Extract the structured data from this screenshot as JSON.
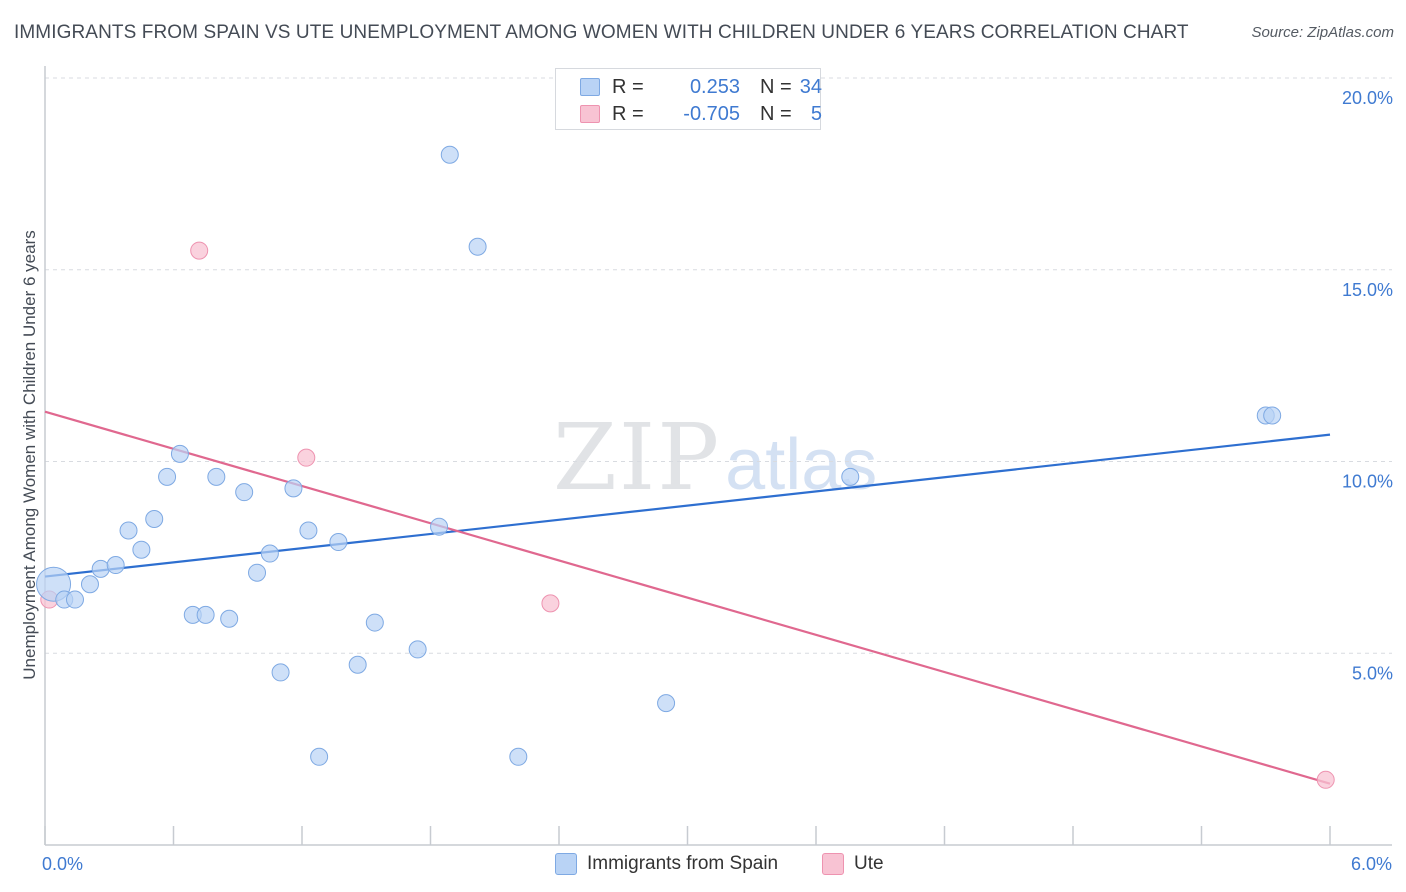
{
  "title": "IMMIGRANTS FROM SPAIN VS UTE UNEMPLOYMENT AMONG WOMEN WITH CHILDREN UNDER 6 YEARS CORRELATION CHART",
  "source": "Source: ZipAtlas.com",
  "watermark": {
    "zip": "ZIP",
    "atlas": "atlas"
  },
  "legend": {
    "rows": [
      {
        "r_label": "R =",
        "r_value": "0.253",
        "n_label": "N =",
        "n_value": "34"
      },
      {
        "r_label": "R =",
        "r_value": "-0.705",
        "n_label": "N =",
        "n_value": "5"
      }
    ]
  },
  "colors": {
    "spain_fill": "#b9d3f5",
    "spain_stroke": "#7ea9e3",
    "spain_line": "#2e6fd0",
    "ute_fill": "#f8c3d3",
    "ute_stroke": "#ee93b0",
    "ute_line": "#e0688f",
    "grid": "#d8dbe0",
    "axis": "#c7cbd1",
    "tick_text": "#3f7ad1"
  },
  "chart_data": {
    "type": "scatter",
    "title": "IMMIGRANTS FROM SPAIN VS UTE UNEMPLOYMENT AMONG WOMEN WITH CHILDREN UNDER 6 YEARS CORRELATION CHART",
    "xlabel": "",
    "ylabel": "Unemployment Among Women with Children Under 6 years",
    "xlim": [
      0,
      6
    ],
    "ylim": [
      0,
      20
    ],
    "x_tick_labels": [
      "0.0%",
      "6.0%"
    ],
    "y_ticks": [
      5,
      10,
      15,
      20
    ],
    "y_tick_labels": [
      "5.0%",
      "10.0%",
      "15.0%",
      "20.0%"
    ],
    "grid": true,
    "legend_position": "top-center",
    "series": [
      {
        "name": "Immigrants from Spain",
        "color": "#b9d3f5",
        "r": 0.253,
        "n": 34,
        "points": [
          {
            "x": 0.04,
            "y": 6.8,
            "big": true
          },
          {
            "x": 0.09,
            "y": 6.4
          },
          {
            "x": 0.14,
            "y": 6.4
          },
          {
            "x": 0.21,
            "y": 6.8
          },
          {
            "x": 0.26,
            "y": 7.2
          },
          {
            "x": 0.33,
            "y": 7.3
          },
          {
            "x": 0.39,
            "y": 8.2
          },
          {
            "x": 0.45,
            "y": 7.7
          },
          {
            "x": 0.51,
            "y": 8.5
          },
          {
            "x": 0.57,
            "y": 9.6
          },
          {
            "x": 0.63,
            "y": 10.2
          },
          {
            "x": 0.69,
            "y": 6.0
          },
          {
            "x": 0.75,
            "y": 6.0
          },
          {
            "x": 0.8,
            "y": 9.6
          },
          {
            "x": 0.86,
            "y": 5.9
          },
          {
            "x": 0.93,
            "y": 9.2
          },
          {
            "x": 0.99,
            "y": 7.1
          },
          {
            "x": 1.05,
            "y": 7.6
          },
          {
            "x": 1.1,
            "y": 4.5
          },
          {
            "x": 1.16,
            "y": 9.3
          },
          {
            "x": 1.23,
            "y": 8.2
          },
          {
            "x": 1.28,
            "y": 2.3
          },
          {
            "x": 1.37,
            "y": 7.9
          },
          {
            "x": 1.46,
            "y": 4.7
          },
          {
            "x": 1.54,
            "y": 5.8
          },
          {
            "x": 1.74,
            "y": 5.1
          },
          {
            "x": 1.84,
            "y": 8.3
          },
          {
            "x": 1.89,
            "y": 18.0
          },
          {
            "x": 2.02,
            "y": 15.6
          },
          {
            "x": 2.21,
            "y": 2.3
          },
          {
            "x": 2.9,
            "y": 3.7
          },
          {
            "x": 3.76,
            "y": 9.6
          },
          {
            "x": 5.7,
            "y": 11.2
          },
          {
            "x": 5.73,
            "y": 11.2
          }
        ],
        "trendline": {
          "x0": 0,
          "y0": 7.0,
          "x1": 6,
          "y1": 10.7
        }
      },
      {
        "name": "Ute",
        "color": "#f8c3d3",
        "r": -0.705,
        "n": 5,
        "points": [
          {
            "x": 0.02,
            "y": 6.4
          },
          {
            "x": 0.72,
            "y": 15.5
          },
          {
            "x": 1.22,
            "y": 10.1
          },
          {
            "x": 2.36,
            "y": 6.3
          },
          {
            "x": 5.98,
            "y": 1.7
          }
        ],
        "trendline": {
          "x0": 0,
          "y0": 11.3,
          "x1": 6,
          "y1": 1.6
        }
      }
    ]
  }
}
